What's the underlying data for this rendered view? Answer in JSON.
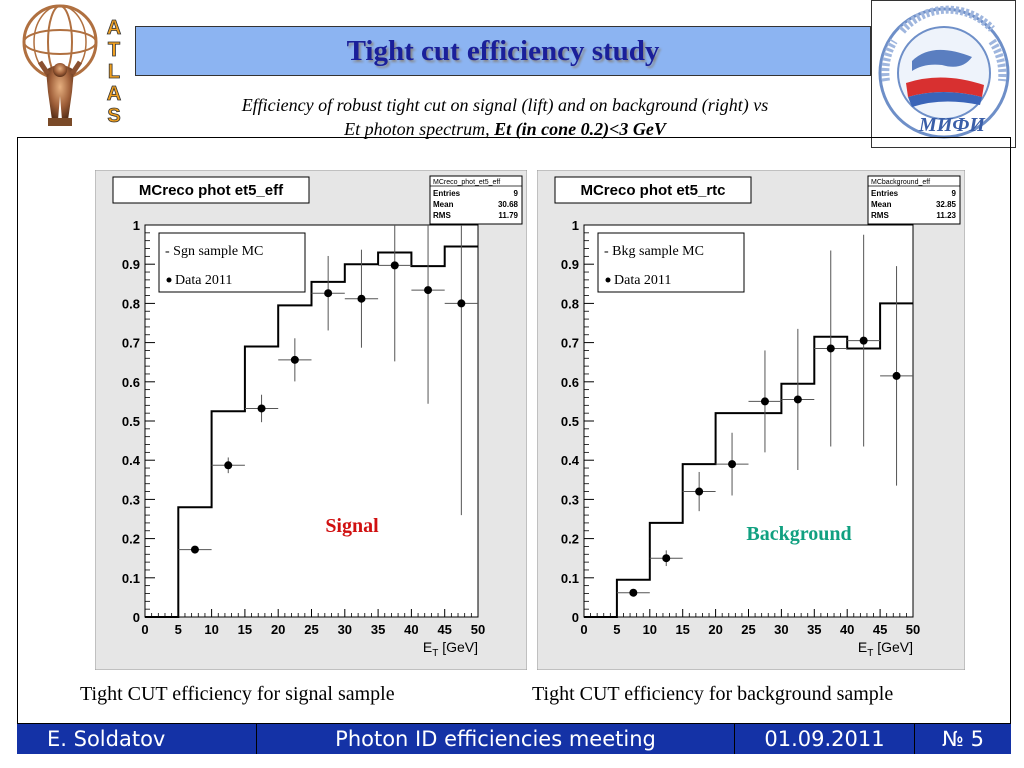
{
  "slide": {
    "title": "Tight cut efficiency study",
    "subtitle_line1": "Efficiency of robust tight cut on signal (lift) and on background (right) vs",
    "subtitle_line2_plain": "Et photon spectrum, ",
    "subtitle_line2_bold": "Et (in cone 0.2)<3 GeV",
    "left_logo_letters": [
      "A",
      "T",
      "L",
      "A",
      "S"
    ],
    "caption_left": "Tight CUT efficiency for signal sample",
    "caption_right": "Tight CUT efficiency for background sample",
    "right_logo_text": "МИФИ"
  },
  "footer": {
    "author": "E. Soldatov",
    "meeting": "Photon ID efficiencies meeting",
    "date": "01.09.2011",
    "page": "№ 5"
  },
  "colors": {
    "title_bg": "#8cb4f2",
    "title_text": "#1a1f9a",
    "footer_bg": "#1432a6",
    "signal_label": "#d01010",
    "background_label": "#10a080",
    "canvas_bg": "#e6e6e6"
  },
  "chart_data": [
    {
      "type": "scatter",
      "canvas_title": "MCreco phot et5_eff",
      "stats": {
        "name": "MCreco_phot_et5_eff",
        "rows": [
          {
            "label": "Entries",
            "value": "9"
          },
          {
            "label": "Mean",
            "value": "30.68"
          },
          {
            "label": "RMS",
            "value": "11.79"
          }
        ]
      },
      "xlabel_main": "E",
      "xlabel_sub": "T",
      "xlabel_unit": " [GeV]",
      "xlim": [
        0,
        50
      ],
      "ylim": [
        0,
        1
      ],
      "xticks": [
        "0",
        "5",
        "10",
        "15",
        "20",
        "25",
        "30",
        "35",
        "40",
        "45",
        "50"
      ],
      "yticks": [
        "0",
        "0.1",
        "0.2",
        "0.3",
        "0.4",
        "0.5",
        "0.6",
        "0.7",
        "0.8",
        "0.9",
        "1"
      ],
      "legend": [
        "- Sgn sample MC",
        "Data 2011"
      ],
      "legend_position": "top-left",
      "annotation": "Signal",
      "annotation_color": "#d01010",
      "histogram": {
        "bin_edges": [
          0,
          5,
          10,
          15,
          20,
          25,
          30,
          35,
          40,
          45,
          50
        ],
        "values": [
          0,
          0.28,
          0.525,
          0.69,
          0.795,
          0.855,
          0.9,
          0.93,
          0.895,
          0.945
        ]
      },
      "points": [
        {
          "x": 7.5,
          "y": 0.172,
          "yerr": 0.005
        },
        {
          "x": 12.5,
          "y": 0.387,
          "yerr": 0.02
        },
        {
          "x": 17.5,
          "y": 0.532,
          "yerr": 0.035
        },
        {
          "x": 22.5,
          "y": 0.656,
          "yerr": 0.055
        },
        {
          "x": 27.5,
          "y": 0.826,
          "yerr": 0.095
        },
        {
          "x": 32.5,
          "y": 0.812,
          "yerr": 0.125
        },
        {
          "x": 37.5,
          "y": 0.897,
          "yerr": 0.245
        },
        {
          "x": 42.5,
          "y": 0.834,
          "yerr": 0.29
        },
        {
          "x": 47.5,
          "y": 0.8,
          "yerr": 0.54
        }
      ],
      "xerr": 2.5
    },
    {
      "type": "scatter",
      "canvas_title": "MCreco phot et5_rtc",
      "stats": {
        "name": "MCbackground_eff",
        "rows": [
          {
            "label": "Entries",
            "value": "9"
          },
          {
            "label": "Mean",
            "value": "32.85"
          },
          {
            "label": "RMS",
            "value": "11.23"
          }
        ]
      },
      "xlabel_main": "E",
      "xlabel_sub": "T",
      "xlabel_unit": " [GeV]",
      "xlim": [
        0,
        50
      ],
      "ylim": [
        0,
        1
      ],
      "xticks": [
        "0",
        "5",
        "10",
        "15",
        "20",
        "25",
        "30",
        "35",
        "40",
        "45",
        "50"
      ],
      "yticks": [
        "0",
        "0.1",
        "0.2",
        "0.3",
        "0.4",
        "0.5",
        "0.6",
        "0.7",
        "0.8",
        "0.9",
        "1"
      ],
      "legend": [
        "- Bkg sample MC",
        "Data 2011"
      ],
      "legend_position": "top-left",
      "annotation": "Background",
      "annotation_color": "#10a080",
      "histogram": {
        "bin_edges": [
          0,
          5,
          10,
          15,
          20,
          25,
          30,
          35,
          40,
          45,
          50
        ],
        "values": [
          0,
          0.095,
          0.24,
          0.39,
          0.52,
          0.52,
          0.595,
          0.715,
          0.685,
          0.8
        ]
      },
      "points": [
        {
          "x": 7.5,
          "y": 0.062,
          "yerr": 0.008
        },
        {
          "x": 12.5,
          "y": 0.15,
          "yerr": 0.02
        },
        {
          "x": 17.5,
          "y": 0.32,
          "yerr": 0.05
        },
        {
          "x": 22.5,
          "y": 0.39,
          "yerr": 0.08
        },
        {
          "x": 27.5,
          "y": 0.55,
          "yerr": 0.13
        },
        {
          "x": 32.5,
          "y": 0.555,
          "yerr": 0.18
        },
        {
          "x": 37.5,
          "y": 0.685,
          "yerr": 0.25
        },
        {
          "x": 42.5,
          "y": 0.705,
          "yerr": 0.27
        },
        {
          "x": 47.5,
          "y": 0.615,
          "yerr": 0.28
        }
      ],
      "xerr": 2.5
    }
  ]
}
